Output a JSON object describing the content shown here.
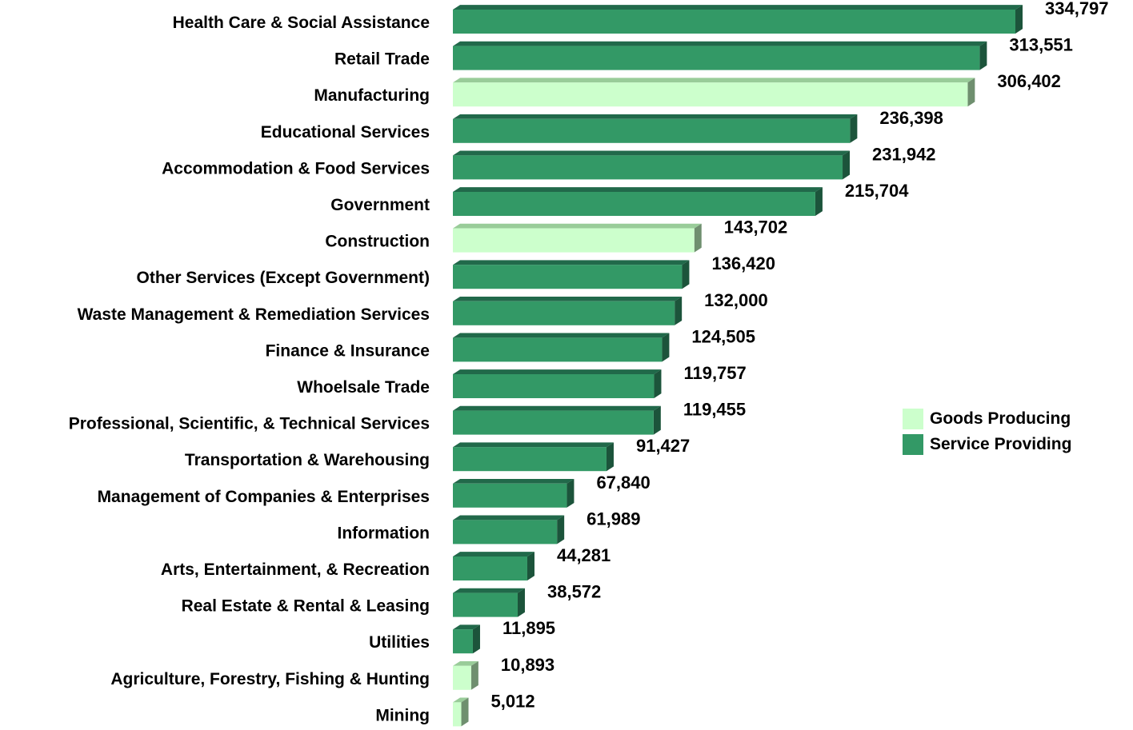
{
  "chart_data": {
    "type": "bar",
    "orientation": "horizontal",
    "title": "",
    "xlabel": "",
    "ylabel": "",
    "xlim": [
      0,
      340000
    ],
    "grid": false,
    "legend_position": "right",
    "categories": [
      "Health Care & Social Assistance",
      "Retail Trade",
      "Manufacturing",
      "Educational Services",
      "Accommodation & Food Services",
      "Government",
      "Construction",
      "Other Services (Except Government)",
      "Waste Management & Remediation Services",
      "Finance & Insurance",
      "Whoelsale Trade",
      "Professional, Scientific, & Technical Services",
      "Transportation & Warehousing",
      "Management of Companies & Enterprises",
      "Information",
      "Arts, Entertainment, & Recreation",
      "Real Estate & Rental & Leasing",
      "Utilities",
      "Agriculture, Forestry, Fishing & Hunting",
      "Mining"
    ],
    "values": [
      334797,
      313551,
      306402,
      236398,
      231942,
      215704,
      143702,
      136420,
      132000,
      124505,
      119757,
      119455,
      91427,
      67840,
      61989,
      44281,
      38572,
      11895,
      10893,
      5012
    ],
    "value_labels": [
      "334,797",
      "313,551",
      "306,402",
      "236,398",
      "231,942",
      "215,704",
      "143,702",
      "136,420",
      "132,000",
      "124,505",
      "119,757",
      "119,455",
      "91,427",
      "67,840",
      "61,989",
      "44,281",
      "38,572",
      "11,895",
      "10,893",
      "5,012"
    ],
    "groups": [
      "service",
      "service",
      "goods",
      "service",
      "service",
      "service",
      "goods",
      "service",
      "service",
      "service",
      "service",
      "service",
      "service",
      "service",
      "service",
      "service",
      "service",
      "service",
      "goods",
      "goods"
    ],
    "legend": [
      {
        "key": "goods",
        "label": "Goods Producing",
        "color": "#ccffcc"
      },
      {
        "key": "service",
        "label": "Service Providing",
        "color": "#339966"
      }
    ]
  }
}
